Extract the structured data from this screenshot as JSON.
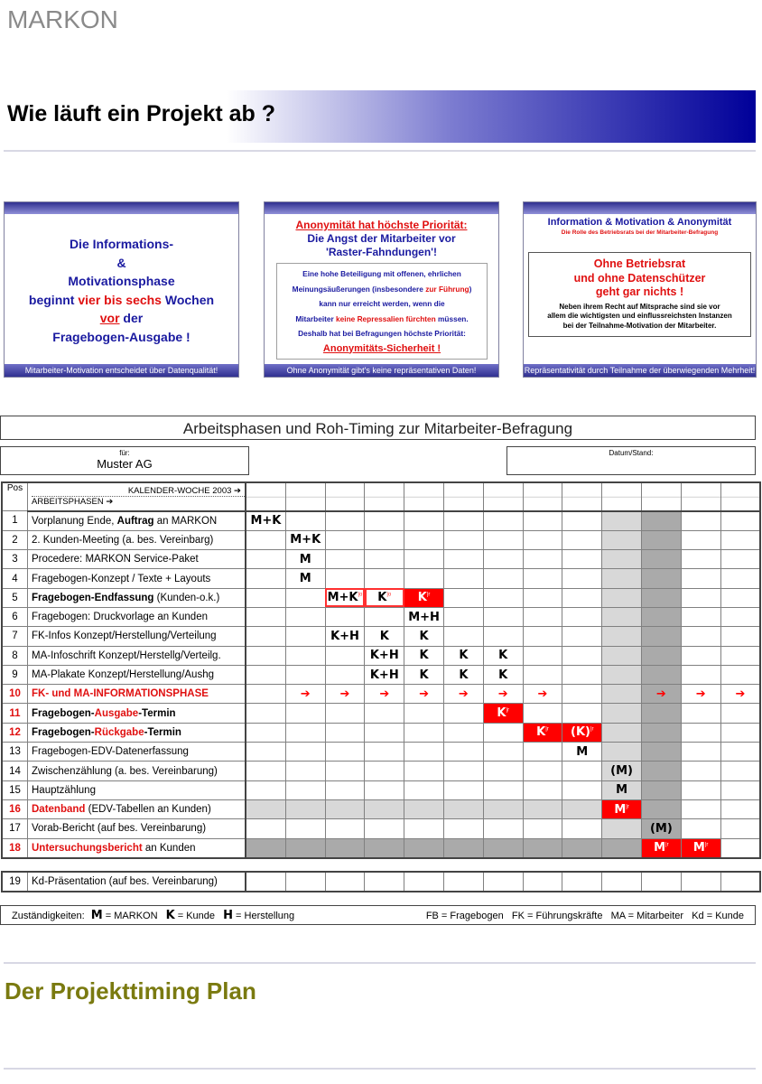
{
  "logo": "MARKON",
  "title": "Wie läuft ein Projekt ab ?",
  "boxes": [
    {
      "lines": [
        "Die Informations-",
        "&",
        "Motivationsphase"
      ],
      "l4a": "beginnt ",
      "l4b": "vier bis sechs",
      "l4c": " Wochen",
      "l5a": "vor",
      "l5b": " der",
      "l6": "Fragebogen-Ausgabe !",
      "footer": "Mitarbeiter-Motivation entscheidet über Datenqualität!"
    },
    {
      "h1": "Anonymität hat höchste Priorität:",
      "h2": "Die Angst der Mitarbeiter vor",
      "h3": "'Raster-Fahndungen'!",
      "p1": "Eine hohe Beteiligung mit offenen, ehrlichen",
      "p2a": "Meinungsäußerungen (insbesondere ",
      "p2b": "zur Führung",
      "p2c": ")",
      "p3": "kann nur erreicht werden, wenn die",
      "p4a": "Mitarbeiter ",
      "p4b": "keine Repressalien fürchten",
      "p4c": " müssen.",
      "p5": "Deshalb hat bei Befragungen höchste Priorität:",
      "p6": "Anonymitäts-Sicherheit !",
      "footer": "Ohne Anonymität gibt's keine repräsentativen Daten!"
    },
    {
      "h1": "Information & Motivation & Anonymität",
      "h2": "Die Rolle des Betriebsrats bei der Mitarbeiter-Befragung",
      "r1": "Ohne Betriebsrat",
      "r2": "und ohne Datenschützer",
      "r3": "geht gar nichts !",
      "p1": "Neben ihrem Recht auf Mitsprache sind sie vor",
      "p2": "allem die wichtigsten und einflussreichsten Instanzen",
      "p3": "bei der Teilnahme-Motivation der Mitarbeiter.",
      "footer": "Repräsentativität durch Teilnahme der überwiegenden Mehrheit!"
    }
  ],
  "plan_title": "Arbeitsphasen und Roh-Timing zur Mitarbeiter-Befragung",
  "for_label": "für:",
  "customer": "Muster AG",
  "date_label": "Datum/Stand:",
  "header": {
    "pos": "Pos",
    "week": "KALENDER-WOCHE 2003 ➔",
    "phases": "ARBEITSPHASEN ➔"
  },
  "rows": [
    {
      "pos": "1",
      "label": [
        [
          "Vorplanung Ende, ",
          ""
        ],
        [
          "Auftrag",
          "b"
        ],
        [
          " an MARKON",
          ""
        ]
      ],
      "cells": {
        "0": "M+K"
      }
    },
    {
      "pos": "2",
      "label": [
        [
          "2. Kunden-Meeting (a. bes. Vereinbarg)",
          ""
        ]
      ],
      "cells": {
        "1": "M+K"
      }
    },
    {
      "pos": "3",
      "label": [
        [
          "Procedere: MARKON Service-Paket",
          ""
        ]
      ],
      "cells": {
        "1": "M"
      }
    },
    {
      "pos": "4",
      "label": [
        [
          "Fragebogen-Konzept / Texte + Layouts",
          ""
        ]
      ],
      "cells": {
        "1": "M"
      }
    },
    {
      "pos": "5",
      "bold": true,
      "label": [
        [
          "Fragebogen-Endfassung",
          "b"
        ],
        [
          " (Kunden-o.k.)",
          ""
        ]
      ],
      "cells": {
        "2": "M+K|o",
        "3": "K|o",
        "4": "K|r"
      }
    },
    {
      "pos": "6",
      "label": [
        [
          "Fragebogen: Druckvorlage an Kunden",
          ""
        ]
      ],
      "cells": {
        "4": "M+H"
      }
    },
    {
      "pos": "7",
      "label": [
        [
          "FK-Infos Konzept/Herstellung/Verteilung",
          ""
        ]
      ],
      "cells": {
        "2": "K+H",
        "3": "K",
        "4": "K"
      }
    },
    {
      "pos": "8",
      "label": [
        [
          "MA-Infoschrift Konzept/Herstellg/Verteilg.",
          ""
        ]
      ],
      "cells": {
        "3": "K+H",
        "4": "K",
        "5": "K",
        "6": "K"
      }
    },
    {
      "pos": "9",
      "label": [
        [
          "MA-Plakate Konzept/Herstellung/Aushg",
          ""
        ]
      ],
      "cells": {
        "3": "K+H",
        "4": "K",
        "5": "K",
        "6": "K"
      }
    },
    {
      "pos": "10",
      "red": true,
      "label": [
        [
          "FK- und MA-INFORMATIONSPHASE",
          "rb"
        ]
      ],
      "cells": {
        "1": "➔",
        "2": "➔",
        "3": "➔",
        "4": "➔",
        "5": "➔",
        "6": "➔",
        "7": "➔",
        "10": "➔",
        "11": "➔",
        "12": "➔"
      }
    },
    {
      "pos": "11",
      "red": true,
      "label": [
        [
          "Fragebogen-",
          "b"
        ],
        [
          "Ausgabe",
          "rb"
        ],
        [
          "-Termin",
          "b"
        ]
      ],
      "cells": {
        "6": "K|r"
      }
    },
    {
      "pos": "12",
      "red": true,
      "label": [
        [
          "Fragebogen-",
          "b"
        ],
        [
          "Rückgabe",
          "rb"
        ],
        [
          "-Termin",
          "b"
        ]
      ],
      "cells": {
        "7": "K|r",
        "8": "(K)|r"
      }
    },
    {
      "pos": "13",
      "label": [
        [
          "Fragebogen-EDV-Datenerfassung",
          ""
        ]
      ],
      "cells": {
        "8": "M"
      }
    },
    {
      "pos": "14",
      "label": [
        [
          "Zwischenzählung (a. bes. Vereinbarung)",
          ""
        ]
      ],
      "cells": {
        "9": "(M)"
      }
    },
    {
      "pos": "15",
      "label": [
        [
          "Hauptzählung",
          ""
        ]
      ],
      "cells": {
        "9": "M"
      }
    },
    {
      "pos": "16",
      "red": true,
      "label": [
        [
          "Datenband",
          "rb"
        ],
        [
          " (EDV-Tabellen an Kunden)",
          ""
        ]
      ],
      "cells": {
        "9": "M|r"
      },
      "shade": "light"
    },
    {
      "pos": "17",
      "label": [
        [
          "Vorab-Bericht (auf bes. Vereinbarung)",
          ""
        ]
      ],
      "cells": {
        "10": "(M)"
      }
    },
    {
      "pos": "18",
      "red": true,
      "label": [
        [
          "Untersuchungsbericht",
          "rb"
        ],
        [
          " an Kunden",
          ""
        ]
      ],
      "cells": {
        "10": "M|r",
        "11": "M|r"
      },
      "shade": "dark"
    }
  ],
  "row19": {
    "pos": "19",
    "label": "Kd-Präsentation (auf bes. Vereinbarung)"
  },
  "legend": {
    "intro": "Zuständigkeiten:",
    "m": "M",
    "m_t": " = MARKON",
    "k": "K",
    "k_t": " = Kunde",
    "h": "H",
    "h_t": " = Herstellung",
    "abbr": "FB = Fragebogen   FK = Führungskräfte   MA = Mitarbeiter   Kd = Kunde"
  },
  "footer_title": "Der Projekttiming Plan",
  "colors": {
    "navy": "#000099",
    "red": "#ff0000",
    "olive": "#7a7a10",
    "blue_text": "#1a1aa0"
  }
}
